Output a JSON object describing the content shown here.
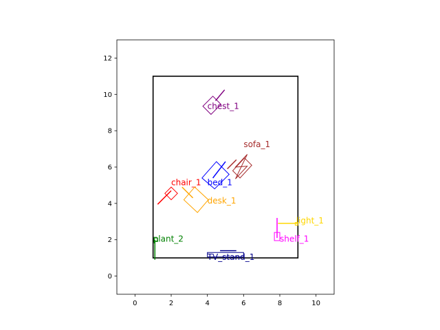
{
  "chart_data": {
    "type": "scatter",
    "title": "",
    "xlabel": "",
    "ylabel": "",
    "xlim": [
      -1,
      11
    ],
    "ylim": [
      -1,
      13
    ],
    "xticks": [
      0,
      2,
      4,
      6,
      8,
      10
    ],
    "yticks": [
      0,
      2,
      4,
      6,
      8,
      10,
      12
    ],
    "grid": false,
    "room": {
      "x0": 1,
      "y0": 1,
      "x1": 9,
      "y1": 11,
      "color": "#000000"
    },
    "items": [
      {
        "name": "chest_1",
        "color": "#800080",
        "label_pos": [
          4.0,
          9.2
        ],
        "shapes": [
          {
            "type": "poly",
            "points": [
              [
                3.75,
                9.35
              ],
              [
                4.3,
                9.9
              ],
              [
                4.75,
                9.45
              ],
              [
                4.2,
                8.9
              ]
            ]
          },
          {
            "type": "line",
            "points": [
              [
                4.45,
                9.65
              ],
              [
                4.95,
                10.25
              ]
            ]
          }
        ]
      },
      {
        "name": "sofa_1",
        "color": "#a52a2a",
        "label_pos": [
          6.0,
          7.1
        ],
        "shapes": [
          {
            "type": "poly",
            "points": [
              [
                5.55,
                6.0
              ],
              [
                6.2,
                6.7
              ],
              [
                5.55,
                5.35
              ],
              [
                6.2,
                6.05
              ]
            ]
          },
          {
            "type": "poly",
            "points": [
              [
                5.4,
                5.8
              ],
              [
                6.05,
                6.5
              ],
              [
                6.45,
                6.1
              ],
              [
                5.8,
                5.4
              ]
            ]
          },
          {
            "type": "line",
            "points": [
              [
                5.1,
                5.9
              ],
              [
                5.6,
                6.4
              ]
            ]
          }
        ]
      },
      {
        "name": "bed_1",
        "color": "#0000ff",
        "label_pos": [
          4.0,
          5.0
        ],
        "shapes": [
          {
            "type": "poly",
            "points": [
              [
                3.7,
                5.4
              ],
              [
                4.5,
                6.3
              ],
              [
                5.2,
                5.6
              ],
              [
                4.4,
                4.8
              ]
            ]
          },
          {
            "type": "line",
            "points": [
              [
                4.3,
                5.4
              ],
              [
                5.0,
                6.3
              ]
            ]
          }
        ]
      },
      {
        "name": "chair_1",
        "color": "#ff0000",
        "label_pos": [
          2.0,
          5.0
        ],
        "shapes": [
          {
            "type": "poly",
            "points": [
              [
                1.65,
                4.55
              ],
              [
                2.0,
                4.9
              ],
              [
                2.35,
                4.55
              ],
              [
                2.0,
                4.2
              ]
            ]
          },
          {
            "type": "line",
            "points": [
              [
                1.25,
                3.95
              ],
              [
                2.0,
                4.7
              ]
            ]
          }
        ]
      },
      {
        "name": "desk_1",
        "color": "#ffa500",
        "label_pos": [
          4.0,
          4.0
        ],
        "shapes": [
          {
            "type": "poly",
            "points": [
              [
                2.7,
                4.2
              ],
              [
                3.3,
                4.9
              ],
              [
                4.05,
                4.2
              ],
              [
                3.45,
                3.5
              ]
            ]
          },
          {
            "type": "line",
            "points": [
              [
                2.6,
                4.9
              ],
              [
                3.2,
                4.3
              ]
            ]
          }
        ]
      },
      {
        "name": "light_1",
        "color": "#ffd700",
        "label_pos": [
          8.9,
          2.9
        ],
        "shapes": [
          {
            "type": "line",
            "points": [
              [
                7.9,
                2.9
              ],
              [
                9.0,
                2.9
              ]
            ]
          },
          {
            "type": "poly",
            "points": [
              [
                8.85,
                2.8
              ],
              [
                9.0,
                2.8
              ],
              [
                9.0,
                2.95
              ],
              [
                8.85,
                2.95
              ]
            ]
          }
        ]
      },
      {
        "name": "shelf_1",
        "color": "#ff00ff",
        "label_pos": [
          8.0,
          1.9
        ],
        "shapes": [
          {
            "type": "line",
            "points": [
              [
                7.85,
                2.1
              ],
              [
                7.85,
                3.2
              ]
            ]
          },
          {
            "type": "poly",
            "points": [
              [
                7.7,
                1.95
              ],
              [
                8.0,
                1.95
              ],
              [
                8.0,
                2.4
              ],
              [
                7.7,
                2.4
              ]
            ]
          }
        ]
      },
      {
        "name": "plant_2",
        "color": "#008000",
        "label_pos": [
          1.0,
          1.9
        ],
        "shapes": [
          {
            "type": "line",
            "points": [
              [
                1.1,
                0.9
              ],
              [
                1.1,
                2.0
              ]
            ]
          },
          {
            "type": "poly",
            "points": [
              [
                1.05,
                1.9
              ],
              [
                1.25,
                1.9
              ],
              [
                1.25,
                2.1
              ],
              [
                1.05,
                2.1
              ]
            ]
          }
        ]
      },
      {
        "name": "TV_stand_1",
        "color": "#00008b",
        "label_pos": [
          4.0,
          0.9
        ],
        "shapes": [
          {
            "type": "poly",
            "points": [
              [
                4.0,
                1.05
              ],
              [
                6.0,
                1.05
              ],
              [
                6.0,
                1.3
              ],
              [
                4.0,
                1.3
              ]
            ]
          },
          {
            "type": "line",
            "points": [
              [
                4.7,
                1.4
              ],
              [
                5.6,
                1.4
              ]
            ]
          }
        ]
      }
    ]
  }
}
